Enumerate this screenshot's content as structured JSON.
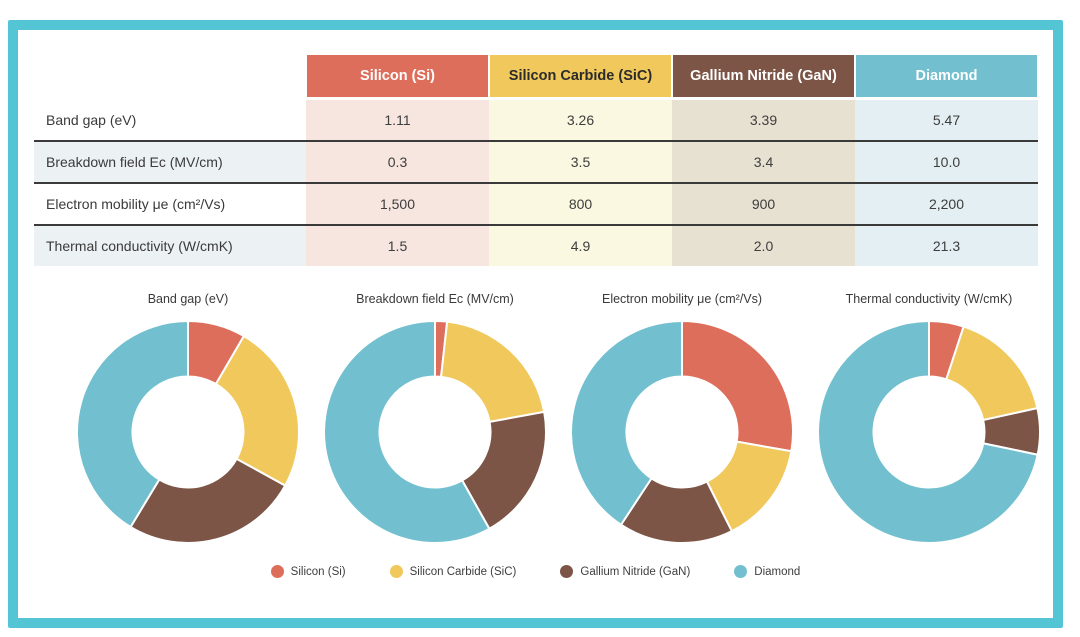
{
  "page": {
    "frame_color": "#54C5D4",
    "background_color": "#FFFFFF",
    "separator_color": "#3A3A3A",
    "stripe_color": "#ECF1F4"
  },
  "table": {
    "columns": [
      {
        "label": "Silicon (Si)",
        "color": "#DE6E5C",
        "text_color": "#FFFFFF",
        "tint": "#F7E6E0"
      },
      {
        "label": "Silicon Carbide (SiC)",
        "color": "#F0C85C",
        "text_color": "#2B2B2B",
        "tint": "#FAF8E1"
      },
      {
        "label": "Gallium Nitride (GaN)",
        "color": "#7C5546",
        "text_color": "#FFFFFF",
        "tint": "#E7E1D2"
      },
      {
        "label": "Diamond",
        "color": "#72C0CF",
        "text_color": "#FFFFFF",
        "tint": "#E3EFF2"
      }
    ],
    "rows": [
      {
        "label": "Band gap (eV)",
        "values": [
          "1.11",
          "3.26",
          "3.39",
          "5.47"
        ]
      },
      {
        "label": "Breakdown field Ec (MV/cm)",
        "values": [
          "0.3",
          "3.5",
          "3.4",
          "10.0"
        ]
      },
      {
        "label": "Electron mobility μe (cm²/Vs)",
        "values": [
          "1,500",
          "800",
          "900",
          "2,200"
        ]
      },
      {
        "label": "Thermal conductivity (W/cmK)",
        "values": [
          "1.5",
          "4.9",
          "2.0",
          "21.3"
        ]
      }
    ]
  },
  "chart_data": [
    {
      "type": "pie",
      "variant": "donut",
      "title": "Band gap (eV)",
      "categories": [
        "Silicon (Si)",
        "Silicon Carbide (SiC)",
        "Gallium Nitride (GaN)",
        "Diamond"
      ],
      "values": [
        1.11,
        3.26,
        3.39,
        5.47
      ],
      "colors": [
        "#DE6E5C",
        "#F0C85C",
        "#7C5546",
        "#72C0CF"
      ],
      "start_angle_deg": 0,
      "direction": "clockwise",
      "legend_position": "shared-bottom"
    },
    {
      "type": "pie",
      "variant": "donut",
      "title": "Breakdown field Ec (MV/cm)",
      "categories": [
        "Silicon (Si)",
        "Silicon Carbide (SiC)",
        "Gallium Nitride (GaN)",
        "Diamond"
      ],
      "values": [
        0.3,
        3.5,
        3.4,
        10.0
      ],
      "colors": [
        "#DE6E5C",
        "#F0C85C",
        "#7C5546",
        "#72C0CF"
      ],
      "start_angle_deg": 0,
      "direction": "clockwise",
      "legend_position": "shared-bottom"
    },
    {
      "type": "pie",
      "variant": "donut",
      "title": "Electron mobility μe (cm²/Vs)",
      "categories": [
        "Silicon (Si)",
        "Silicon Carbide (SiC)",
        "Gallium Nitride (GaN)",
        "Diamond"
      ],
      "values": [
        1500,
        800,
        900,
        2200
      ],
      "colors": [
        "#DE6E5C",
        "#F0C85C",
        "#7C5546",
        "#72C0CF"
      ],
      "start_angle_deg": 0,
      "direction": "clockwise",
      "legend_position": "shared-bottom"
    },
    {
      "type": "pie",
      "variant": "donut",
      "title": "Thermal conductivity (W/cmK)",
      "categories": [
        "Silicon (Si)",
        "Silicon Carbide (SiC)",
        "Gallium Nitride (GaN)",
        "Diamond"
      ],
      "values": [
        1.5,
        4.9,
        2.0,
        21.3
      ],
      "colors": [
        "#DE6E5C",
        "#F0C85C",
        "#7C5546",
        "#72C0CF"
      ],
      "start_angle_deg": 0,
      "direction": "clockwise",
      "legend_position": "shared-bottom"
    }
  ],
  "legend": {
    "items": [
      {
        "label": "Silicon (Si)",
        "color": "#DE6E5C"
      },
      {
        "label": "Silicon Carbide (SiC)",
        "color": "#F0C85C"
      },
      {
        "label": "Gallium Nitride (GaN)",
        "color": "#7C5546"
      },
      {
        "label": "Diamond",
        "color": "#72C0CF"
      }
    ]
  }
}
